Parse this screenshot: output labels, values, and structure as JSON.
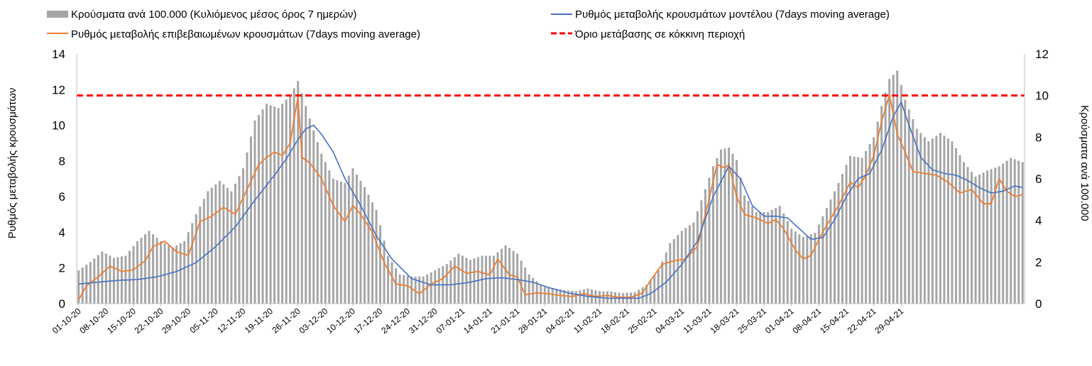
{
  "chart_data": {
    "type": "bar+line",
    "title": "",
    "ylabel_left": "Ρυθμός μεταβολής κρουσμάτων",
    "ylabel_right": "Κρούσματα ανά 100.000",
    "ylim_left": [
      0,
      14
    ],
    "ylim_right": [
      0,
      12
    ],
    "yticks_left": [
      "0",
      "2",
      "4",
      "6",
      "8",
      "10",
      "12",
      "14"
    ],
    "yticks_right": [
      "0",
      "2",
      "4",
      "6",
      "8",
      "10",
      "12"
    ],
    "x_tick_labels": [
      "01-10-20",
      "08-10-20",
      "15-10-20",
      "22-10-20",
      "29-10-20",
      "05-11-20",
      "12-11-20",
      "19-11-20",
      "26-11-20",
      "03-12-20",
      "10-12-20",
      "17-12-20",
      "24-12-20",
      "31-12-20",
      "07-01-21",
      "14-01-21",
      "21-01-21",
      "28-01-21",
      "04-02-21",
      "11-02-21",
      "18-02-21",
      "25-02-21",
      "04-03-21",
      "11-03-21",
      "18-03-21",
      "25-03-21",
      "01-04-21",
      "08-04-21",
      "15-04-21",
      "22-04-21",
      "29-04-21"
    ],
    "legend_position": "top",
    "grid": false,
    "series": [
      {
        "name": "Κρούσματα ανά 100.000 (Κυλιόμενος μέσος όρος 7 ημερών)",
        "kind": "bar",
        "axis": "right",
        "color": "#a6a6a6",
        "keypoints": [
          [
            0,
            1.6
          ],
          [
            3,
            2.0
          ],
          [
            6,
            2.5
          ],
          [
            9,
            2.2
          ],
          [
            12,
            2.3
          ],
          [
            15,
            3.0
          ],
          [
            18,
            3.5
          ],
          [
            21,
            3.0
          ],
          [
            24,
            2.7
          ],
          [
            27,
            3.0
          ],
          [
            30,
            4.3
          ],
          [
            33,
            5.4
          ],
          [
            36,
            5.9
          ],
          [
            39,
            5.4
          ],
          [
            42,
            6.5
          ],
          [
            45,
            8.8
          ],
          [
            48,
            9.6
          ],
          [
            51,
            9.4
          ],
          [
            54,
            10.0
          ],
          [
            56,
            10.7
          ],
          [
            59,
            8.9
          ],
          [
            62,
            7.2
          ],
          [
            65,
            6.0
          ],
          [
            68,
            5.8
          ],
          [
            70,
            6.5
          ],
          [
            73,
            5.6
          ],
          [
            76,
            4.5
          ],
          [
            79,
            2.3
          ],
          [
            82,
            1.4
          ],
          [
            85,
            1.3
          ],
          [
            88,
            1.3
          ],
          [
            91,
            1.6
          ],
          [
            94,
            1.9
          ],
          [
            97,
            2.4
          ],
          [
            100,
            2.1
          ],
          [
            103,
            2.3
          ],
          [
            106,
            2.3
          ],
          [
            109,
            2.8
          ],
          [
            112,
            2.4
          ],
          [
            115,
            1.4
          ],
          [
            118,
            0.9
          ],
          [
            121,
            0.75
          ],
          [
            124,
            0.65
          ],
          [
            127,
            0.6
          ],
          [
            130,
            0.72
          ],
          [
            133,
            0.6
          ],
          [
            136,
            0.58
          ],
          [
            139,
            0.5
          ],
          [
            142,
            0.55
          ],
          [
            145,
            0.9
          ],
          [
            148,
            1.6
          ],
          [
            151,
            2.9
          ],
          [
            154,
            3.5
          ],
          [
            157,
            3.9
          ],
          [
            160,
            5.5
          ],
          [
            162,
            6.6
          ],
          [
            164,
            7.4
          ],
          [
            166,
            7.5
          ],
          [
            168,
            6.9
          ],
          [
            170,
            5.2
          ],
          [
            173,
            4.4
          ],
          [
            176,
            4.4
          ],
          [
            179,
            4.7
          ],
          [
            182,
            3.6
          ],
          [
            185,
            3.2
          ],
          [
            188,
            3.4
          ],
          [
            191,
            4.6
          ],
          [
            194,
            5.8
          ],
          [
            197,
            7.1
          ],
          [
            200,
            7.0
          ],
          [
            203,
            8.0
          ],
          [
            205,
            9.5
          ],
          [
            207,
            10.8
          ],
          [
            209,
            11.2
          ],
          [
            211,
            9.8
          ],
          [
            214,
            8.4
          ],
          [
            217,
            7.8
          ],
          [
            220,
            8.2
          ],
          [
            223,
            7.8
          ],
          [
            226,
            6.8
          ],
          [
            229,
            6.1
          ],
          [
            232,
            6.4
          ],
          [
            235,
            6.6
          ],
          [
            238,
            7.0
          ],
          [
            241,
            6.8
          ]
        ]
      },
      {
        "name": "Ρυθμός μεταβολής επιβεβαιωμένων κρουσμάτων (7days moving average)",
        "kind": "line",
        "axis": "left",
        "color": "#ed7d31",
        "keypoints": [
          [
            0,
            0.2
          ],
          [
            2,
            1.0
          ],
          [
            5,
            1.5
          ],
          [
            8,
            2.1
          ],
          [
            11,
            1.8
          ],
          [
            14,
            1.9
          ],
          [
            17,
            2.4
          ],
          [
            19,
            3.2
          ],
          [
            22,
            3.5
          ],
          [
            25,
            2.9
          ],
          [
            28,
            2.7
          ],
          [
            31,
            4.6
          ],
          [
            34,
            4.9
          ],
          [
            37,
            5.4
          ],
          [
            40,
            5.0
          ],
          [
            43,
            6.4
          ],
          [
            46,
            7.8
          ],
          [
            48,
            8.2
          ],
          [
            50,
            8.5
          ],
          [
            52,
            8.3
          ],
          [
            54,
            9.0
          ],
          [
            56,
            11.6
          ],
          [
            57,
            8.2
          ],
          [
            59,
            7.9
          ],
          [
            62,
            7.0
          ],
          [
            65,
            5.5
          ],
          [
            68,
            4.6
          ],
          [
            70,
            5.5
          ],
          [
            72,
            5.0
          ],
          [
            75,
            4.0
          ],
          [
            78,
            2.3
          ],
          [
            81,
            1.1
          ],
          [
            84,
            1.0
          ],
          [
            87,
            0.55
          ],
          [
            90,
            1.1
          ],
          [
            93,
            1.4
          ],
          [
            96,
            2.1
          ],
          [
            99,
            1.7
          ],
          [
            102,
            1.8
          ],
          [
            105,
            1.6
          ],
          [
            107,
            2.5
          ],
          [
            110,
            1.6
          ],
          [
            112,
            1.5
          ],
          [
            114,
            0.5
          ],
          [
            117,
            0.6
          ],
          [
            120,
            0.55
          ],
          [
            123,
            0.45
          ],
          [
            126,
            0.4
          ],
          [
            129,
            0.55
          ],
          [
            132,
            0.4
          ],
          [
            135,
            0.45
          ],
          [
            138,
            0.35
          ],
          [
            141,
            0.35
          ],
          [
            144,
            0.6
          ],
          [
            146,
            1.3
          ],
          [
            149,
            2.2
          ],
          [
            152,
            2.4
          ],
          [
            155,
            2.5
          ],
          [
            158,
            3.2
          ],
          [
            161,
            5.9
          ],
          [
            163,
            7.8
          ],
          [
            165,
            7.6
          ],
          [
            166,
            7.8
          ],
          [
            168,
            6.0
          ],
          [
            170,
            5.0
          ],
          [
            173,
            4.8
          ],
          [
            176,
            4.5
          ],
          [
            178,
            4.7
          ],
          [
            180,
            4.2
          ],
          [
            183,
            3.0
          ],
          [
            185,
            2.5
          ],
          [
            187,
            2.7
          ],
          [
            189,
            3.6
          ],
          [
            191,
            4.4
          ],
          [
            194,
            5.5
          ],
          [
            197,
            6.8
          ],
          [
            199,
            6.5
          ],
          [
            201,
            7.2
          ],
          [
            203,
            8.3
          ],
          [
            205,
            10.2
          ],
          [
            207,
            11.7
          ],
          [
            209,
            9.5
          ],
          [
            211,
            8.5
          ],
          [
            213,
            7.4
          ],
          [
            216,
            7.3
          ],
          [
            219,
            7.2
          ],
          [
            222,
            6.8
          ],
          [
            225,
            6.2
          ],
          [
            228,
            6.4
          ],
          [
            231,
            5.6
          ],
          [
            233,
            5.6
          ],
          [
            235,
            7.0
          ],
          [
            237,
            6.3
          ],
          [
            239,
            6.0
          ],
          [
            241,
            6.1
          ]
        ]
      },
      {
        "name": "Ρυθμός μεταβολής κρουσμάτων μοντέλου (7days moving average)",
        "kind": "line",
        "axis": "left",
        "color": "#4472c4",
        "keypoints": [
          [
            0,
            1.1
          ],
          [
            5,
            1.2
          ],
          [
            10,
            1.3
          ],
          [
            15,
            1.35
          ],
          [
            20,
            1.5
          ],
          [
            25,
            1.8
          ],
          [
            30,
            2.3
          ],
          [
            35,
            3.2
          ],
          [
            40,
            4.3
          ],
          [
            45,
            5.8
          ],
          [
            50,
            7.2
          ],
          [
            53,
            8.1
          ],
          [
            56,
            9.2
          ],
          [
            58,
            9.8
          ],
          [
            60,
            10.0
          ],
          [
            62,
            9.5
          ],
          [
            65,
            8.5
          ],
          [
            68,
            7.0
          ],
          [
            72,
            5.5
          ],
          [
            76,
            3.8
          ],
          [
            80,
            2.5
          ],
          [
            85,
            1.4
          ],
          [
            90,
            1.05
          ],
          [
            95,
            1.05
          ],
          [
            100,
            1.2
          ],
          [
            104,
            1.4
          ],
          [
            108,
            1.45
          ],
          [
            112,
            1.35
          ],
          [
            116,
            1.2
          ],
          [
            120,
            0.9
          ],
          [
            125,
            0.6
          ],
          [
            130,
            0.4
          ],
          [
            135,
            0.3
          ],
          [
            140,
            0.3
          ],
          [
            143,
            0.3
          ],
          [
            146,
            0.55
          ],
          [
            150,
            1.2
          ],
          [
            154,
            2.2
          ],
          [
            158,
            3.5
          ],
          [
            162,
            6.0
          ],
          [
            166,
            7.7
          ],
          [
            169,
            7.0
          ],
          [
            172,
            5.5
          ],
          [
            175,
            4.9
          ],
          [
            178,
            4.9
          ],
          [
            181,
            4.8
          ],
          [
            184,
            4.2
          ],
          [
            187,
            3.6
          ],
          [
            190,
            3.7
          ],
          [
            193,
            4.7
          ],
          [
            196,
            6.0
          ],
          [
            199,
            7.0
          ],
          [
            202,
            7.3
          ],
          [
            205,
            8.6
          ],
          [
            208,
            10.5
          ],
          [
            210,
            11.3
          ],
          [
            212,
            10.0
          ],
          [
            215,
            8.2
          ],
          [
            218,
            7.5
          ],
          [
            221,
            7.3
          ],
          [
            224,
            7.2
          ],
          [
            227,
            6.9
          ],
          [
            230,
            6.5
          ],
          [
            233,
            6.2
          ],
          [
            236,
            6.3
          ],
          [
            239,
            6.6
          ],
          [
            241,
            6.5
          ]
        ]
      },
      {
        "name": "Όριο μετάβασης σε κόκκινη περιοχή",
        "kind": "threshold",
        "axis": "right",
        "value": 10,
        "color": "#ff0000"
      }
    ]
  }
}
